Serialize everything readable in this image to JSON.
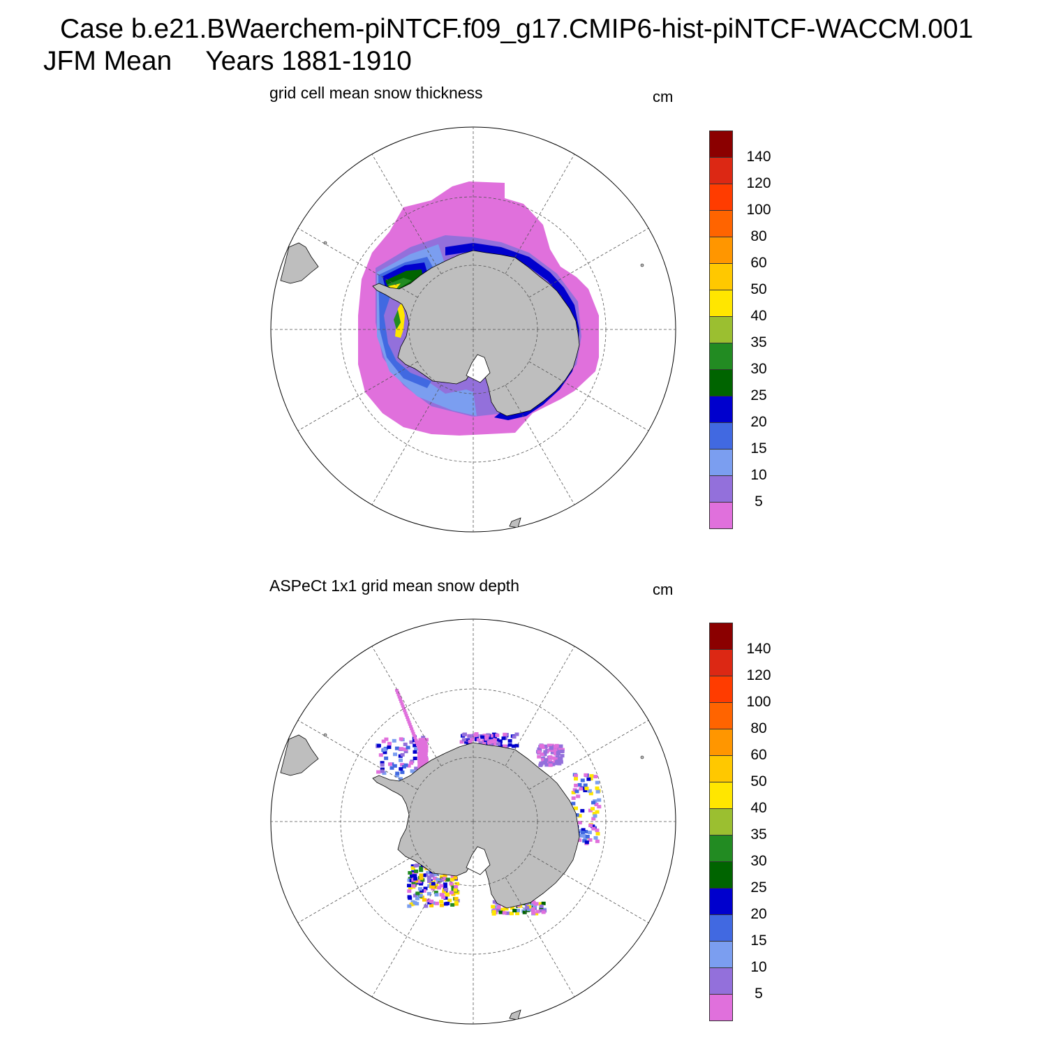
{
  "title": {
    "case_line": "Case b.e21.BWaerchem-piNTCF.f09_g17.CMIP6-hist-piNTCF-WACCM.001",
    "season": "JFM Mean",
    "years": "Years 1881-1910"
  },
  "panels": [
    {
      "title": "grid cell mean snow thickness",
      "unit": "cm",
      "style": "model"
    },
    {
      "title": "ASPeCt 1x1 grid mean snow depth",
      "unit": "cm",
      "style": "obs"
    }
  ],
  "colorbar": {
    "labels": [
      "140",
      "120",
      "100",
      "80",
      "60",
      "50",
      "40",
      "35",
      "30",
      "25",
      "20",
      "15",
      "10",
      "5"
    ],
    "colors_top_to_bottom": [
      "#8b0000",
      "#dc2814",
      "#ff3c00",
      "#ff6400",
      "#ff9600",
      "#ffc800",
      "#ffe600",
      "#9bbf30",
      "#228b22",
      "#006400",
      "#0000cd",
      "#4169e1",
      "#7b9ef0",
      "#9370db",
      "#e070dc"
    ]
  },
  "map_style": {
    "land_color": "#bebebe",
    "grid_style": "dashed",
    "projection": "south polar stereographic"
  }
}
